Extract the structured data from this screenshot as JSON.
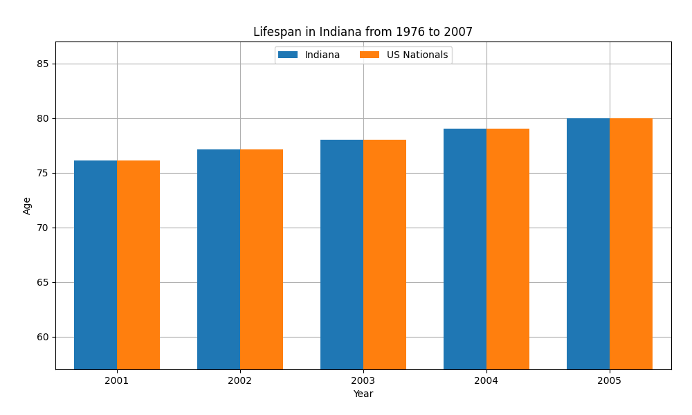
{
  "chart_data": {
    "type": "bar",
    "title": "Lifespan in Indiana from 1976 to 2007",
    "x_label": "Year",
    "y_label": "Age",
    "categories": [
      "2001",
      "2002",
      "2003",
      "2004",
      "2005"
    ],
    "series": [
      {
        "name": "Indiana",
        "values": [
          76.1,
          77.1,
          78.0,
          79.0,
          80.0
        ]
      },
      {
        "name": "US Nationals",
        "values": [
          76.1,
          77.1,
          78.0,
          79.0,
          80.0
        ]
      }
    ],
    "ylim": [
      57,
      87
    ],
    "yticks": [
      60,
      65,
      70,
      75,
      80,
      85
    ],
    "grid": true,
    "legend": "upper center"
  }
}
